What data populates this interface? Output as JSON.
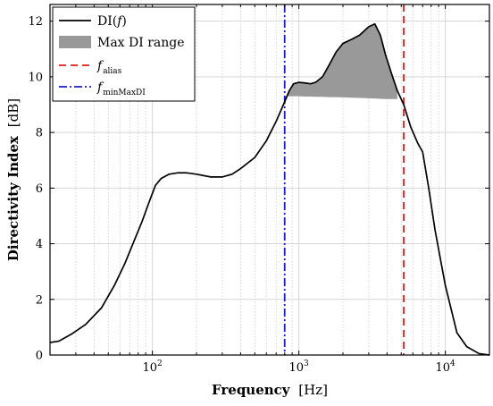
{
  "chart_data": {
    "type": "line",
    "xscale": "log",
    "xlim": [
      20,
      20000
    ],
    "ylim": [
      0,
      12.6
    ],
    "grid": true,
    "legend_position": "top-left",
    "xlabel": {
      "main": "Frequency",
      "unit": "[Hz]"
    },
    "ylabel": {
      "main": "Directivity Index",
      "unit": "[dB]"
    },
    "x_ticks": [
      {
        "value": 100,
        "label_base": "10",
        "label_exp": "2"
      },
      {
        "value": 1000,
        "label_base": "10",
        "label_exp": "3"
      },
      {
        "value": 10000,
        "label_base": "10",
        "label_exp": "4"
      }
    ],
    "y_ticks": [
      0,
      2,
      4,
      6,
      8,
      10,
      12
    ],
    "series": [
      {
        "name": "DI(f)",
        "color": "#000000",
        "x": [
          20,
          23,
          28,
          35,
          45,
          55,
          65,
          75,
          85,
          95,
          105,
          115,
          130,
          150,
          170,
          200,
          250,
          300,
          350,
          400,
          500,
          600,
          700,
          800,
          860,
          920,
          1000,
          1100,
          1200,
          1300,
          1450,
          1600,
          1800,
          2000,
          2300,
          2600,
          3000,
          3300,
          3600,
          3900,
          4300,
          4700,
          5200,
          5800,
          6500,
          7000,
          7700,
          8500,
          10000,
          12000,
          14000,
          17000,
          20000
        ],
        "y": [
          0.45,
          0.5,
          0.75,
          1.1,
          1.7,
          2.5,
          3.3,
          4.1,
          4.8,
          5.5,
          6.1,
          6.35,
          6.5,
          6.55,
          6.55,
          6.5,
          6.4,
          6.4,
          6.5,
          6.7,
          7.1,
          7.7,
          8.4,
          9.1,
          9.5,
          9.75,
          9.8,
          9.78,
          9.75,
          9.8,
          10.0,
          10.4,
          10.9,
          11.2,
          11.35,
          11.5,
          11.8,
          11.9,
          11.5,
          10.8,
          10.1,
          9.5,
          9.0,
          8.2,
          7.6,
          7.3,
          6.0,
          4.5,
          2.5,
          0.8,
          0.3,
          0.05,
          0.0
        ]
      }
    ],
    "max_di_range": {
      "label": "Max DI range",
      "color": "#999999",
      "x": [
        800,
        860,
        920,
        1000,
        1100,
        1200,
        1300,
        1450,
        1600,
        1800,
        2000,
        2300,
        2600,
        3000,
        3300,
        3600,
        3900,
        4300,
        4700
      ],
      "lower": [
        9.3,
        9.3,
        9.3,
        9.3,
        9.29,
        9.29,
        9.28,
        9.28,
        9.27,
        9.27,
        9.26,
        9.25,
        9.24,
        9.23,
        9.22,
        9.21,
        9.2,
        9.2,
        9.2
      ]
    },
    "vlines": [
      {
        "name": "f_alias",
        "label_main": "f",
        "label_sub": "alias",
        "x": 5200,
        "color": "#dd1c1c",
        "style": "dashed"
      },
      {
        "name": "f_minMaxDI",
        "label_main": "f",
        "label_sub": "minMaxDI",
        "x": 800,
        "color": "#1c1cc8",
        "style": "dashdot"
      }
    ],
    "legend": [
      {
        "label_main": "DI(",
        "label_italic": "f",
        "label_end": ")",
        "kind": "line",
        "color": "#000000"
      },
      {
        "label_main": "Max DI range",
        "kind": "patch",
        "color": "#999999"
      },
      {
        "label_main": "f",
        "label_sub": "alias",
        "kind": "dashed",
        "color": "#dd1c1c"
      },
      {
        "label_main": "f",
        "label_sub": "minMaxDI",
        "kind": "dashdot",
        "color": "#1c1cc8"
      }
    ]
  }
}
